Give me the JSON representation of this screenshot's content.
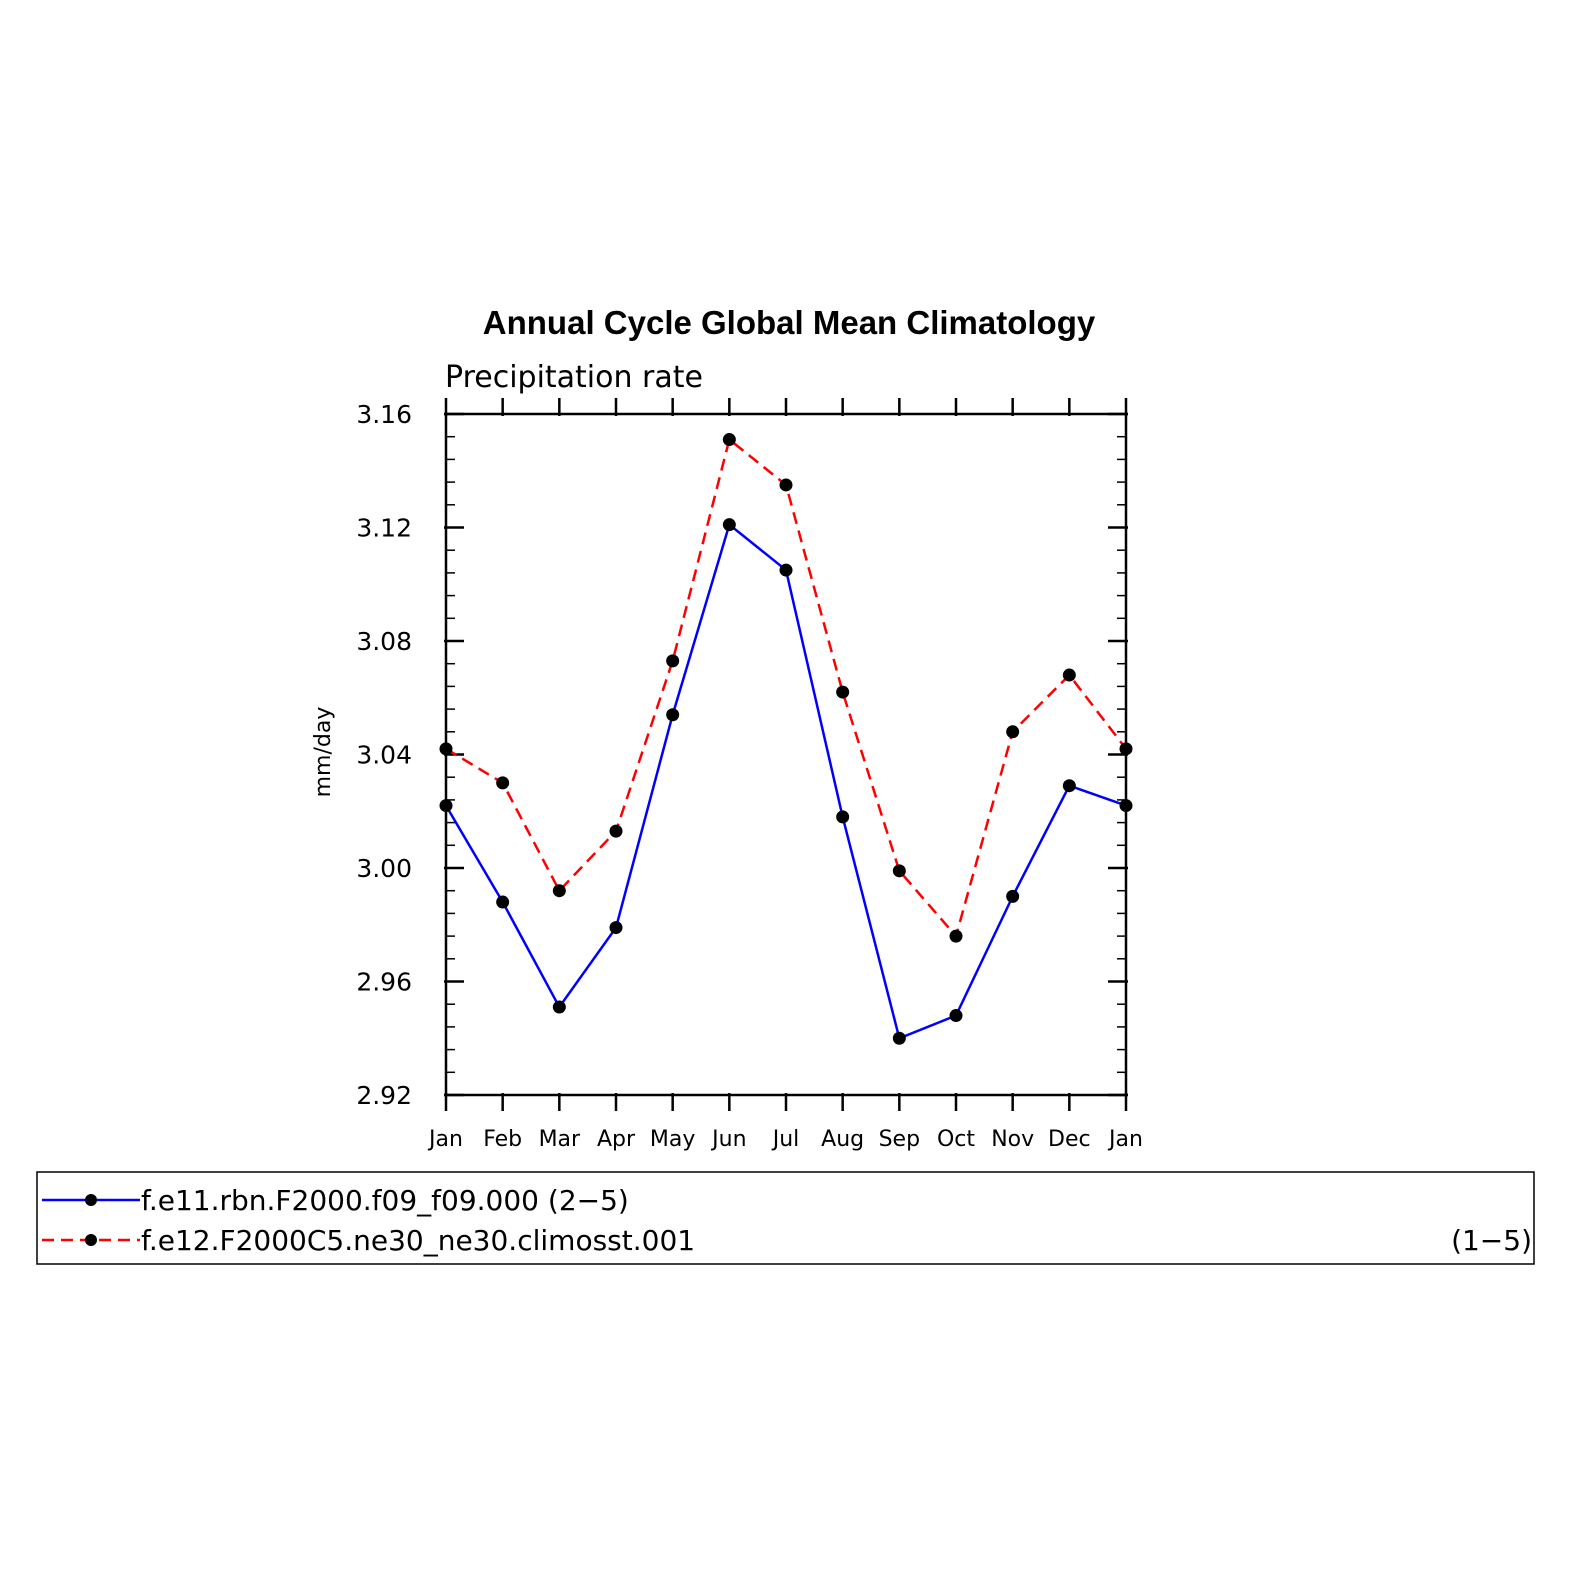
{
  "chart_data": {
    "type": "line",
    "title": "Annual Cycle Global Mean Climatology",
    "subtitle": "Precipitation rate",
    "xlabel": "",
    "ylabel": "mm/day",
    "categories": [
      "Jan",
      "Feb",
      "Mar",
      "Apr",
      "May",
      "Jun",
      "Jul",
      "Aug",
      "Sep",
      "Oct",
      "Nov",
      "Dec",
      "Jan"
    ],
    "ylim": [
      2.92,
      3.16
    ],
    "yticks": [
      "3.16",
      "3.12",
      "3.08",
      "3.04",
      "3.00",
      "2.96",
      "2.92"
    ],
    "grid": false,
    "legend_position": "bottom",
    "series": [
      {
        "name": "f.e11.rbn.F2000.f09_f09.000 (2−5)",
        "color": "#0000ff",
        "line_style": "solid",
        "values": [
          3.022,
          2.988,
          2.951,
          2.979,
          3.054,
          3.121,
          3.105,
          3.018,
          2.94,
          2.948,
          2.99,
          3.029,
          3.022
        ]
      },
      {
        "name": "f.e12.F2000C5.ne30_ne30.climosst.001",
        "name_suffix": "(1−5)",
        "color": "#ff0000",
        "line_style": "dashed",
        "values": [
          3.042,
          3.03,
          2.992,
          3.013,
          3.073,
          3.151,
          3.135,
          3.062,
          2.999,
          2.976,
          3.048,
          3.068,
          3.042
        ]
      }
    ]
  }
}
